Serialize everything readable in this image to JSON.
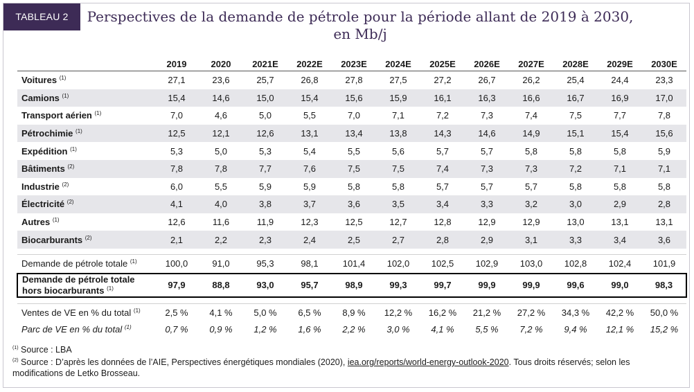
{
  "tag": "TABLEAU 2",
  "title_line1": "Perspectives de la demande de pétrole pour la période allant de 2019 à 2030,",
  "title_line2": "en Mb/j",
  "years": [
    "2019",
    "2020",
    "2021E",
    "2022E",
    "2023E",
    "2024E",
    "2025E",
    "2026E",
    "2027E",
    "2028E",
    "2029E",
    "2030E"
  ],
  "categories": [
    {
      "label": "Voitures",
      "note": "(1)",
      "values": [
        "27,1",
        "23,6",
        "25,7",
        "26,8",
        "27,8",
        "27,5",
        "27,2",
        "26,7",
        "26,2",
        "25,4",
        "24,4",
        "23,3"
      ]
    },
    {
      "label": "Camions",
      "note": "(1)",
      "values": [
        "15,4",
        "14,6",
        "15,0",
        "15,4",
        "15,6",
        "15,9",
        "16,1",
        "16,3",
        "16,6",
        "16,7",
        "16,9",
        "17,0"
      ]
    },
    {
      "label": "Transport aérien",
      "note": "(1)",
      "values": [
        "7,0",
        "4,6",
        "5,0",
        "5,5",
        "7,0",
        "7,1",
        "7,2",
        "7,3",
        "7,4",
        "7,5",
        "7,7",
        "7,8"
      ]
    },
    {
      "label": "Pétrochimie",
      "note": "(1)",
      "values": [
        "12,5",
        "12,1",
        "12,6",
        "13,1",
        "13,4",
        "13,8",
        "14,3",
        "14,6",
        "14,9",
        "15,1",
        "15,4",
        "15,6"
      ]
    },
    {
      "label": "Expédition",
      "note": "(1)",
      "values": [
        "5,3",
        "5,0",
        "5,3",
        "5,4",
        "5,5",
        "5,6",
        "5,7",
        "5,7",
        "5,8",
        "5,8",
        "5,8",
        "5,9"
      ]
    },
    {
      "label": "Bâtiments",
      "note": "(2)",
      "values": [
        "7,8",
        "7,8",
        "7,7",
        "7,6",
        "7,5",
        "7,5",
        "7,4",
        "7,3",
        "7,3",
        "7,2",
        "7,1",
        "7,1"
      ]
    },
    {
      "label": "Industrie",
      "note": "(2)",
      "values": [
        "6,0",
        "5,5",
        "5,9",
        "5,9",
        "5,8",
        "5,8",
        "5,7",
        "5,7",
        "5,7",
        "5,8",
        "5,8",
        "5,8"
      ]
    },
    {
      "label": "Électricité",
      "note": "(2)",
      "values": [
        "4,1",
        "4,0",
        "3,8",
        "3,7",
        "3,6",
        "3,5",
        "3,4",
        "3,3",
        "3,2",
        "3,0",
        "2,9",
        "2,8"
      ]
    },
    {
      "label": "Autres",
      "note": "(1)",
      "values": [
        "12,6",
        "11,6",
        "11,9",
        "12,3",
        "12,5",
        "12,7",
        "12,8",
        "12,9",
        "12,9",
        "13,0",
        "13,1",
        "13,1"
      ]
    },
    {
      "label": "Biocarburants",
      "note": "(2)",
      "values": [
        "2,1",
        "2,2",
        "2,3",
        "2,4",
        "2,5",
        "2,7",
        "2,8",
        "2,9",
        "3,1",
        "3,3",
        "3,4",
        "3,6"
      ]
    }
  ],
  "total": {
    "label": "Demande de pétrole totale",
    "note": "(1)",
    "values": [
      "100,0",
      "91,0",
      "95,3",
      "98,1",
      "101,4",
      "102,0",
      "102,5",
      "102,9",
      "103,0",
      "102,8",
      "102,4",
      "101,9"
    ]
  },
  "total_hors_bio": {
    "label_line1": "Demande de pétrole totale",
    "label_line2": "hors biocarburants",
    "note": "(1)",
    "values": [
      "97,9",
      "88,8",
      "93,0",
      "95,7",
      "98,9",
      "99,3",
      "99,7",
      "99,9",
      "99,9",
      "99,6",
      "99,0",
      "98,3"
    ]
  },
  "ventes_ve": {
    "label": "Ventes de VE en % du total",
    "note": "(1)",
    "values": [
      "2,5 %",
      "4,1 %",
      "5,0 %",
      "6,5 %",
      "8,9 %",
      "12,2 %",
      "16,2 %",
      "21,2 %",
      "27,2 %",
      "34,3 %",
      "42,2 %",
      "50,0 %"
    ]
  },
  "parc_ve": {
    "label": "Parc de VE en % du total",
    "note": "(1)",
    "values": [
      "0,7 %",
      "0,9 %",
      "1,2 %",
      "1,6 %",
      "2,2 %",
      "3,0 %",
      "4,1 %",
      "5,5 %",
      "7,2 %",
      "9,4 %",
      "12,1 %",
      "15,2 %"
    ]
  },
  "notes": {
    "n1_mark": "(1)",
    "n1_text": " Source : LBA",
    "n2_mark": "(2)",
    "n2_text_a": " Source : D’après les données de l’AIE, Perspectives énergétiques mondiales (2020), ",
    "n2_link": "iea.org/reports/world-energy-outlook-2020",
    "n2_text_b": ". Tous droits réservés; selon les modifications de Letko Brosseau."
  },
  "colors": {
    "accent": "#3d2b56",
    "row_shade": "#e6e6ea"
  }
}
